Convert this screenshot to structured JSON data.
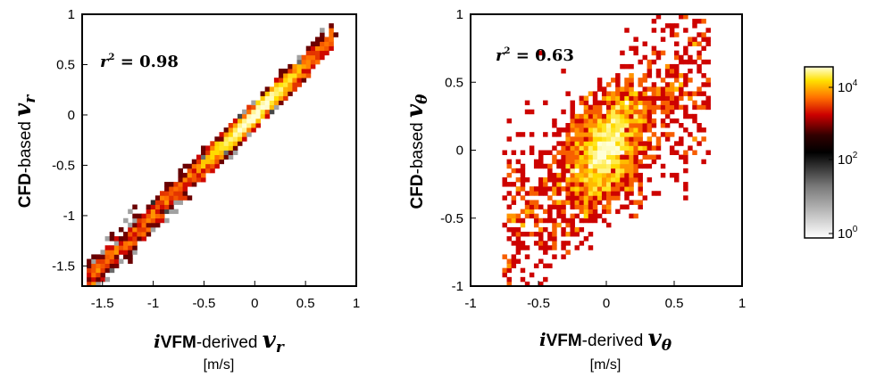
{
  "chart_data": [
    {
      "type": "heatmap",
      "subtype": "2D histogram (density scatter)",
      "ylabel_prefix": "CFD",
      "ylabel_mid": "-based ",
      "ylabel_var": "v",
      "ylabel_sub": "r",
      "xlabel_prefix": "i",
      "xlabel_mid": "VFM",
      "xlabel_rest": "-derived ",
      "xlabel_var": "v",
      "xlabel_sub": "r",
      "unit": "[m/s]",
      "annotation_lhs": "r",
      "annotation_exp": "2",
      "annotation_rhs": " = 0.98",
      "r2": 0.98,
      "xlim": [
        -1.7,
        1.0
      ],
      "ylim": [
        -1.7,
        1.0
      ],
      "xticks": [
        -1.5,
        -1,
        -0.5,
        0,
        0.5,
        1
      ],
      "xtick_labels": [
        "-1.5",
        "-1",
        "-0.5",
        "0",
        "0.5",
        "1"
      ],
      "yticks": [
        -1.5,
        -1,
        -0.5,
        0,
        0.5,
        1
      ],
      "ytick_labels": [
        "-1.5",
        "-1",
        "-0.5",
        "0",
        "0.5",
        "1"
      ],
      "density_model": {
        "slope": 1.0,
        "intercept": 0.0,
        "x_range": [
          -1.65,
          0.78
        ],
        "core_center": [
          0.0,
          0.0
        ],
        "spread": 0.045
      }
    },
    {
      "type": "heatmap",
      "subtype": "2D histogram (density scatter)",
      "ylabel_prefix": "CFD",
      "ylabel_mid": "-based ",
      "ylabel_var": "v",
      "ylabel_sub": "θ",
      "xlabel_prefix": "i",
      "xlabel_mid": "VFM",
      "xlabel_rest": "-derived ",
      "xlabel_var": "v",
      "xlabel_sub": "θ",
      "unit": "[m/s]",
      "annotation_lhs": "r",
      "annotation_exp": "2",
      "annotation_rhs": " = 0.63",
      "r2": 0.63,
      "xlim": [
        -1.0,
        1.0
      ],
      "ylim": [
        -1.0,
        1.0
      ],
      "xticks": [
        -1,
        -0.5,
        0,
        0.5,
        1
      ],
      "xtick_labels": [
        "-1",
        "-0.5",
        "0",
        "0.5",
        "1"
      ],
      "yticks": [
        -1,
        -0.5,
        0,
        0.5,
        1
      ],
      "ytick_labels": [
        "-1",
        "-0.5",
        "0",
        "0.5",
        "1"
      ],
      "density_model": {
        "slope": 0.8,
        "intercept": 0.0,
        "x_range": [
          -0.75,
          0.75
        ],
        "core_center": [
          0.0,
          0.0
        ],
        "spread": 0.18
      }
    }
  ],
  "colorbar": {
    "scale": "log",
    "colormap": "hot (inverted, white-to-black-to-red-to-yellow)",
    "tick_base": "10",
    "tick_exponents": [
      "4",
      "2",
      "0"
    ],
    "colors": [
      "#ffffd8",
      "#ffe000",
      "#ff7000",
      "#cc0000",
      "#300000",
      "#000000",
      "#7a7a7a",
      "#ffffff"
    ]
  }
}
